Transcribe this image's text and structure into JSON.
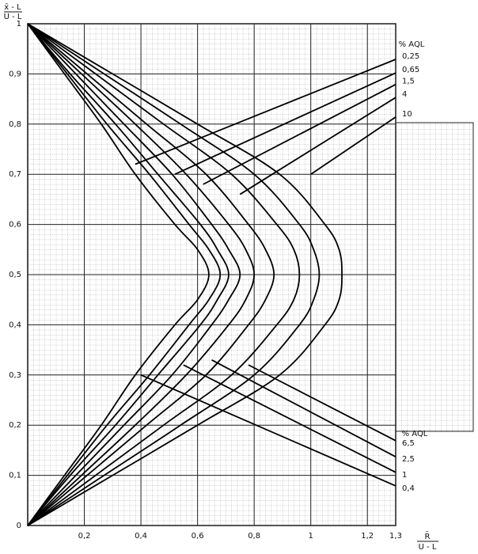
{
  "chart_data": {
    "type": "line",
    "ylabel": [
      "x̄ - L",
      "U - L"
    ],
    "xlabel": [
      "R̄",
      "U - L"
    ],
    "xlim": [
      0,
      1.3
    ],
    "ylim": [
      0,
      1
    ],
    "xticks": [
      {
        "value": 0.2,
        "label": "0,2"
      },
      {
        "value": 0.4,
        "label": "0,4"
      },
      {
        "value": 0.6,
        "label": "0,6"
      },
      {
        "value": 0.8,
        "label": "0,8"
      },
      1,
      {
        "value": 1.2,
        "label": "1,2"
      },
      {
        "value": 1.3,
        "label": "1,3"
      }
    ],
    "yticks": [
      0,
      {
        "value": 0.1,
        "label": "0,1"
      },
      {
        "value": 0.2,
        "label": "0,2"
      },
      {
        "value": 0.3,
        "label": "0,3"
      },
      {
        "value": 0.4,
        "label": "0,4"
      },
      {
        "value": 0.5,
        "label": "0,5"
      },
      {
        "value": 0.6,
        "label": "0,6"
      },
      {
        "value": 0.7,
        "label": "0,7"
      },
      {
        "value": 0.8,
        "label": "0,8"
      },
      {
        "value": 0.9,
        "label": "0,9"
      },
      1
    ],
    "grid": true,
    "legend_titles": [
      "% AQL",
      "% AQL"
    ],
    "color": "#000000",
    "curves": [
      {
        "x": [
          0,
          0.13,
          0.26,
          0.38,
          0.52,
          0.6,
          0.64,
          0.6,
          0.52,
          0.38,
          0.26,
          0.13,
          0
        ],
        "y": [
          0,
          0.1,
          0.2,
          0.3,
          0.4,
          0.45,
          0.5,
          0.55,
          0.6,
          0.7,
          0.8,
          0.9,
          1
        ]
      },
      {
        "x": [
          0,
          0.14,
          0.28,
          0.43,
          0.57,
          0.64,
          0.68,
          0.64,
          0.57,
          0.43,
          0.28,
          0.14,
          0
        ],
        "y": [
          0,
          0.1,
          0.2,
          0.3,
          0.4,
          0.45,
          0.5,
          0.55,
          0.6,
          0.7,
          0.8,
          0.9,
          1
        ]
      },
      {
        "x": [
          0,
          0.15,
          0.31,
          0.46,
          0.61,
          0.67,
          0.71,
          0.67,
          0.61,
          0.46,
          0.31,
          0.15,
          0
        ],
        "y": [
          0,
          0.1,
          0.2,
          0.3,
          0.4,
          0.45,
          0.5,
          0.55,
          0.6,
          0.7,
          0.8,
          0.9,
          1
        ]
      },
      {
        "x": [
          0,
          0.17,
          0.34,
          0.51,
          0.65,
          0.71,
          0.75,
          0.71,
          0.65,
          0.51,
          0.34,
          0.17,
          0
        ],
        "y": [
          0,
          0.1,
          0.2,
          0.3,
          0.4,
          0.45,
          0.5,
          0.55,
          0.6,
          0.7,
          0.8,
          0.9,
          1
        ]
      },
      {
        "x": [
          0,
          0.19,
          0.38,
          0.56,
          0.71,
          0.77,
          0.8,
          0.77,
          0.71,
          0.56,
          0.38,
          0.19,
          0
        ],
        "y": [
          0,
          0.1,
          0.2,
          0.3,
          0.4,
          0.45,
          0.5,
          0.55,
          0.6,
          0.7,
          0.8,
          0.9,
          1
        ]
      },
      {
        "x": [
          0,
          0.21,
          0.42,
          0.63,
          0.78,
          0.84,
          0.87,
          0.84,
          0.78,
          0.63,
          0.42,
          0.21,
          0
        ],
        "y": [
          0,
          0.1,
          0.2,
          0.3,
          0.4,
          0.45,
          0.5,
          0.55,
          0.6,
          0.7,
          0.8,
          0.9,
          1
        ]
      },
      {
        "x": [
          0,
          0.24,
          0.48,
          0.72,
          0.88,
          0.94,
          0.96,
          0.94,
          0.88,
          0.72,
          0.48,
          0.24,
          0
        ],
        "y": [
          0,
          0.1,
          0.2,
          0.3,
          0.4,
          0.45,
          0.5,
          0.55,
          0.6,
          0.7,
          0.8,
          0.9,
          1
        ]
      },
      {
        "x": [
          0,
          0.27,
          0.54,
          0.8,
          0.96,
          1.01,
          1.03,
          1.01,
          0.96,
          0.8,
          0.54,
          0.27,
          0
        ],
        "y": [
          0,
          0.1,
          0.2,
          0.3,
          0.4,
          0.45,
          0.5,
          0.55,
          0.6,
          0.7,
          0.8,
          0.9,
          1
        ]
      },
      {
        "x": [
          0,
          0.3,
          0.6,
          0.89,
          1.05,
          1.1,
          1.11,
          1.1,
          1.05,
          0.89,
          0.6,
          0.3,
          0
        ],
        "y": [
          0,
          0.1,
          0.2,
          0.3,
          0.4,
          0.45,
          0.5,
          0.55,
          0.6,
          0.7,
          0.8,
          0.9,
          1
        ]
      }
    ],
    "series": [
      {
        "name": "0,25",
        "group": 0,
        "x": [
          0.38,
          1.3
        ],
        "values": [
          0.72,
          0.929
        ]
      },
      {
        "name": "0,65",
        "group": 0,
        "x": [
          0.52,
          1.3
        ],
        "values": [
          0.7,
          0.902
        ]
      },
      {
        "name": "1,5",
        "group": 0,
        "x": [
          0.62,
          1.3
        ],
        "values": [
          0.68,
          0.879
        ]
      },
      {
        "name": "4",
        "group": 0,
        "x": [
          0.75,
          1.3
        ],
        "values": [
          0.66,
          0.853
        ]
      },
      {
        "name": "10",
        "group": 0,
        "x": [
          1.0,
          1.3
        ],
        "values": [
          0.7,
          0.814
        ]
      },
      {
        "name": "6,5",
        "group": 1,
        "x": [
          0.78,
          1.3
        ],
        "values": [
          0.32,
          0.169
        ]
      },
      {
        "name": "2,5",
        "group": 1,
        "x": [
          0.65,
          1.3
        ],
        "values": [
          0.33,
          0.137
        ]
      },
      {
        "name": "1",
        "group": 1,
        "x": [
          0.55,
          1.3
        ],
        "values": [
          0.32,
          0.106
        ]
      },
      {
        "name": "0,4",
        "group": 1,
        "x": [
          0.4,
          1.3
        ],
        "values": [
          0.3,
          0.079
        ]
      }
    ]
  }
}
